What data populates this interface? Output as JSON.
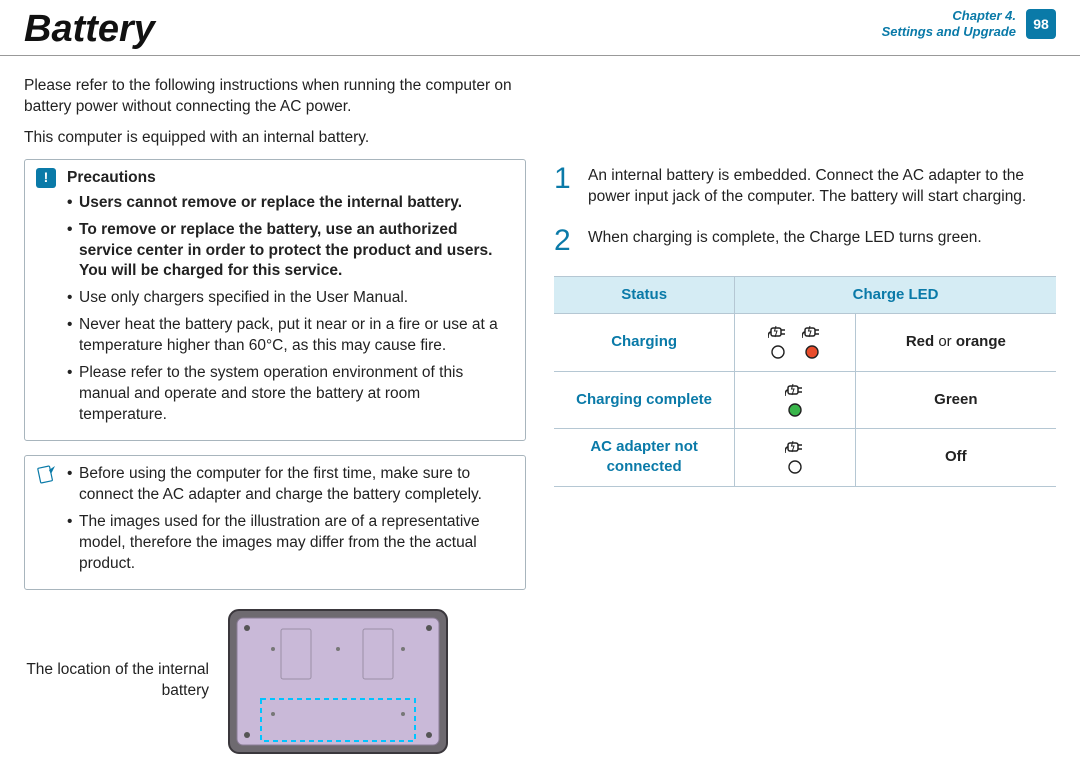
{
  "header": {
    "title": "Battery",
    "chapter_line1": "Chapter 4.",
    "chapter_line2": "Settings and Upgrade",
    "page_number": "98"
  },
  "left": {
    "intro1": "Please refer to the following instructions when running the computer on battery power without connecting the AC power.",
    "intro2": "This computer is equipped with an internal battery.",
    "precautions": {
      "title": "Precautions",
      "items": [
        {
          "text": "Users cannot remove or replace the internal battery.",
          "bold": true
        },
        {
          "text": "To remove or replace the battery, use an authorized service center in order to protect the product and users. You will be charged for this service.",
          "bold": true
        },
        {
          "text": "Use only chargers specified in the User Manual.",
          "bold": false
        },
        {
          "text": "Never heat the battery pack, put it near or in a fire or use at a temperature higher than 60°C, as this may cause fire.",
          "bold": false
        },
        {
          "text": "Please refer to the system operation environment of this manual and operate and store the battery at room temperature.",
          "bold": false
        }
      ]
    },
    "notes": {
      "items": [
        "Before using the computer for the first time, make sure to connect the AC adapter and charge the battery completely.",
        "The images used for the illustration are of a representative model, therefore the images may differ from the the actual product."
      ]
    },
    "image_caption": "The location of the internal battery"
  },
  "right": {
    "steps": [
      "An internal battery is embedded. Connect the AC adapter to the power input jack of the computer. The battery will start charging.",
      "When charging is complete, the Charge LED turns green."
    ],
    "table": {
      "headers": [
        "Status",
        "Charge LED"
      ],
      "rows": [
        {
          "status": "Charging",
          "led_colors": [
            "#ffffff",
            "#e84c2b"
          ],
          "icons": 2,
          "desc_pre": "Red",
          "desc_mid": " or ",
          "desc_post": "orange"
        },
        {
          "status": "Charging complete",
          "led_colors": [
            "#39b54a"
          ],
          "icons": 1,
          "desc_pre": "",
          "desc_mid": "",
          "desc_post": "Green"
        },
        {
          "status": "AC adapter not connected",
          "led_colors": [
            "#ffffff"
          ],
          "icons": 1,
          "desc_pre": "",
          "desc_mid": "",
          "desc_post": "Off"
        }
      ]
    }
  },
  "colors": {
    "accent": "#0a7aa8",
    "table_header_bg": "#d5ecf4",
    "table_border": "#b5c7d3",
    "led_red": "#e84c2b",
    "led_green": "#39b54a"
  }
}
